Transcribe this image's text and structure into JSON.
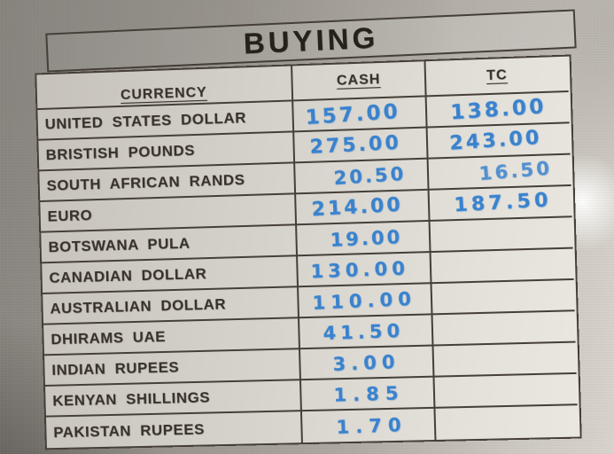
{
  "sign": {
    "title": "BUYING",
    "table": {
      "headers": {
        "currency": "CURRENCY",
        "cash": "CASH",
        "tc": "TC"
      },
      "rows": [
        {
          "currency": "UNITED STATES DOLLAR",
          "cash": "157.00",
          "tc": "138.00"
        },
        {
          "currency": "BRISTISH POUNDS",
          "cash": "275.00",
          "tc": "243.00"
        },
        {
          "currency": "SOUTH AFRICAN RANDS",
          "cash": "20.50",
          "tc": "16.50"
        },
        {
          "currency": "EURO",
          "cash": "214.00",
          "tc": "187.50"
        },
        {
          "currency": "BOTSWANA PULA",
          "cash": "19.00",
          "tc": ""
        },
        {
          "currency": "CANADIAN DOLLAR",
          "cash": "130.00",
          "tc": ""
        },
        {
          "currency": "AUSTRALIAN DOLLAR",
          "cash": "110.00",
          "tc": ""
        },
        {
          "currency": "DHIRAMS UAE",
          "cash": "41.50",
          "tc": ""
        },
        {
          "currency": "INDIAN RUPEES",
          "cash": "3.00",
          "tc": ""
        },
        {
          "currency": "KENYAN SHILLINGS",
          "cash": "1.85",
          "tc": ""
        },
        {
          "currency": "PAKISTAN RUPEES",
          "cash": "1.70",
          "tc": ""
        }
      ]
    },
    "colors": {
      "ink_blue": "#3a82cd",
      "grid_line": "#453f37",
      "printed_text": "#37312a",
      "board_gray": "#9c9891",
      "paper_light": "#e4e1da"
    }
  }
}
